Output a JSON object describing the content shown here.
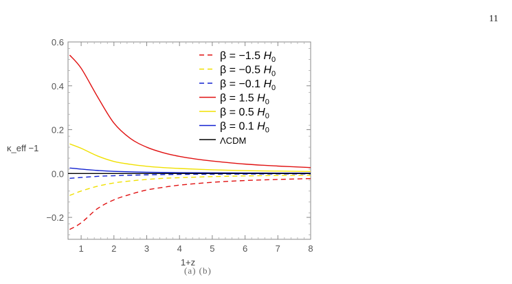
{
  "page": {
    "number": "11",
    "caption_stub": "(a) (b)"
  },
  "chart_data": {
    "type": "line",
    "xlabel": "1+z",
    "ylabel": "κ_eff −1",
    "xlim": [
      0.6,
      8
    ],
    "ylim": [
      -0.3,
      0.6
    ],
    "xticks": [
      1,
      2,
      3,
      4,
      5,
      6,
      7,
      8
    ],
    "yticks": [
      -0.2,
      0.0,
      0.2,
      0.4,
      0.6
    ],
    "ytick_labels": [
      "−0.2",
      "0.0",
      "0.2",
      "0.4",
      "0.6"
    ],
    "grid": false,
    "legend_position": "top-right",
    "series": [
      {
        "name": "β = −1.5 H0",
        "beta_label": "β = −1.5 ",
        "h_label": "H",
        "h_sub": "0",
        "color": "#e01010",
        "dash": true,
        "x": [
          0.65,
          1,
          1.5,
          2,
          2.5,
          3,
          3.5,
          4,
          5,
          6,
          7,
          8
        ],
        "y": [
          -0.255,
          -0.225,
          -0.16,
          -0.12,
          -0.095,
          -0.075,
          -0.063,
          -0.053,
          -0.04,
          -0.032,
          -0.027,
          -0.023
        ]
      },
      {
        "name": "β = −0.5 H0",
        "beta_label": "β = −0.5 ",
        "h_label": "H",
        "h_sub": "0",
        "color": "#f0e000",
        "dash": true,
        "x": [
          0.65,
          1,
          1.5,
          2,
          2.5,
          3,
          3.5,
          4,
          5,
          6,
          7,
          8
        ],
        "y": [
          -0.1,
          -0.08,
          -0.058,
          -0.043,
          -0.034,
          -0.027,
          -0.022,
          -0.019,
          -0.014,
          -0.011,
          -0.009,
          -0.008
        ]
      },
      {
        "name": "β = −0.1 H0",
        "beta_label": "β = −0.1 ",
        "h_label": "H",
        "h_sub": "0",
        "color": "#1020d0",
        "dash": true,
        "x": [
          0.65,
          1,
          1.5,
          2,
          3,
          4,
          5,
          6,
          7,
          8
        ],
        "y": [
          -0.022,
          -0.018,
          -0.013,
          -0.01,
          -0.006,
          -0.004,
          -0.003,
          -0.0025,
          -0.002,
          -0.0018
        ]
      },
      {
        "name": "β = 1.5 H0",
        "beta_label": "β = 1.5 ",
        "h_label": "H",
        "h_sub": "0",
        "color": "#e01010",
        "dash": false,
        "x": [
          0.65,
          1,
          1.5,
          2,
          2.5,
          3,
          3.5,
          4,
          4.5,
          5,
          6,
          7,
          8
        ],
        "y": [
          0.54,
          0.48,
          0.35,
          0.23,
          0.16,
          0.12,
          0.095,
          0.078,
          0.066,
          0.057,
          0.043,
          0.034,
          0.027
        ]
      },
      {
        "name": "β = 0.5 H0",
        "beta_label": "β = 0.5 ",
        "h_label": "H",
        "h_sub": "0",
        "color": "#f0e000",
        "dash": false,
        "x": [
          0.65,
          1,
          1.5,
          2,
          2.5,
          3,
          3.5,
          4,
          5,
          6,
          7,
          8
        ],
        "y": [
          0.135,
          0.115,
          0.08,
          0.055,
          0.042,
          0.033,
          0.027,
          0.023,
          0.017,
          0.013,
          0.011,
          0.009
        ]
      },
      {
        "name": "β = 0.1 H0",
        "beta_label": "β = 0.1 ",
        "h_label": "H",
        "h_sub": "0",
        "color": "#1020d0",
        "dash": false,
        "x": [
          0.65,
          1,
          1.5,
          2,
          3,
          4,
          5,
          6,
          7,
          8
        ],
        "y": [
          0.025,
          0.02,
          0.014,
          0.01,
          0.006,
          0.004,
          0.003,
          0.0025,
          0.002,
          0.0018
        ]
      },
      {
        "name": "ΛCDM",
        "beta_label": "ΛCDM",
        "h_label": "",
        "h_sub": "",
        "color": "#000000",
        "dash": false,
        "x": [
          0.6,
          8
        ],
        "y": [
          0.0,
          0.0
        ]
      }
    ]
  }
}
